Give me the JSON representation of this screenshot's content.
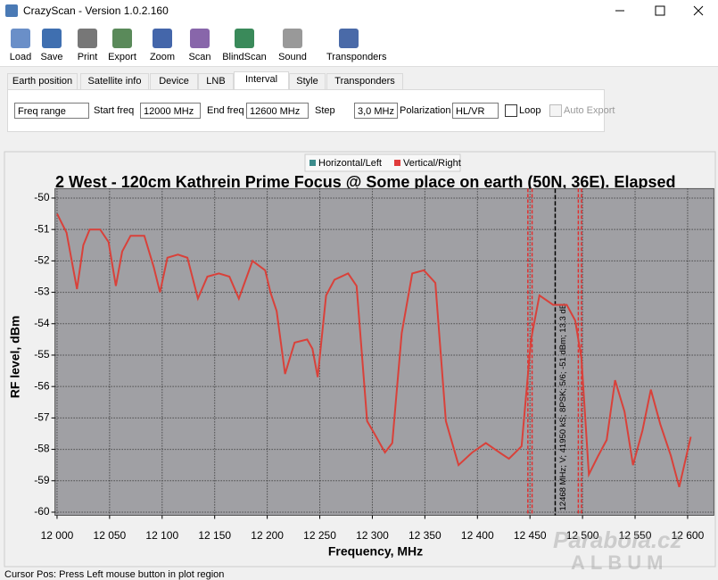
{
  "window": {
    "title": "CrazyScan - Version 1.0.2.160"
  },
  "toolbar": [
    "Load",
    "Save",
    "Print",
    "Export",
    "Zoom",
    "Scan",
    "BlindScan",
    "Sound",
    "Transponders"
  ],
  "tabs": [
    "Earth position",
    "Satellite info",
    "Device",
    "LNB",
    "Interval",
    "Style",
    "Transponders"
  ],
  "controls": {
    "mode": "Freq range",
    "start_label": "Start freq",
    "start_value": "12000 MHz",
    "end_label": "End freq",
    "end_value": "12600 MHz",
    "step_label": "Step",
    "step_value": "3,0 MHz",
    "polarization_label": "Polarization",
    "polarization_value": "HL/VR",
    "loop_label": "Loop",
    "auto_export_label": "Auto Export"
  },
  "chart_data": {
    "type": "line",
    "title": "2 West - 120cm Kathrein Prime Focus @ Some place on earth (50N, 36E). Elapsed",
    "x_label": "Frequency, MHz",
    "y_label": "RF level, dBm",
    "legend_entries": [
      {
        "name": "Horizontal/Left",
        "color": "#3c8c8c"
      },
      {
        "name": "Vertical/Right",
        "color": "#e03c3c"
      }
    ],
    "x": [
      12000,
      12009,
      12019,
      12025,
      12031,
      12041,
      12049,
      12056,
      12062,
      12070,
      12083,
      12092,
      12098,
      12105,
      12115,
      12124,
      12134,
      12143,
      12154,
      12164,
      12173,
      12186,
      12198,
      12203,
      12209,
      12217,
      12226,
      12238,
      12243,
      12248,
      12256,
      12264,
      12277,
      12285,
      12295,
      12302,
      12312,
      12319,
      12328,
      12338,
      12349,
      12360,
      12370,
      12382,
      12395,
      12408,
      12421,
      12430,
      12442,
      12451,
      12459,
      12472,
      12485,
      12493,
      12499,
      12506,
      12515,
      12523,
      12531,
      12540,
      12548,
      12557,
      12565,
      12574,
      12584,
      12592,
      12603
    ],
    "series": [
      {
        "name": "Vertical/Right",
        "color": "#d9413a",
        "values": [
          -50.5,
          -51.1,
          -52.9,
          -51.5,
          -51.0,
          -51.0,
          -51.4,
          -52.8,
          -51.7,
          -51.2,
          -51.2,
          -52.2,
          -53.0,
          -51.9,
          -51.8,
          -51.9,
          -53.2,
          -52.5,
          -52.4,
          -52.5,
          -53.2,
          -52.0,
          -52.3,
          -53.0,
          -53.6,
          -55.6,
          -54.6,
          -54.5,
          -54.8,
          -55.7,
          -53.1,
          -52.6,
          -52.4,
          -52.8,
          -57.1,
          -57.5,
          -58.1,
          -57.8,
          -54.3,
          -52.4,
          -52.3,
          -52.7,
          -57.1,
          -58.5,
          -58.1,
          -57.8,
          -58.1,
          -58.3,
          -57.9,
          -54.5,
          -53.1,
          -53.4,
          -53.4,
          -53.9,
          -55.1,
          -58.8,
          -58.2,
          -57.7,
          -55.8,
          -56.8,
          -58.5,
          -57.4,
          -56.1,
          -57.2,
          -58.2,
          -59.2,
          -57.6
        ]
      }
    ],
    "transponder_edges": [
      12448,
      12452,
      12496,
      12499
    ],
    "cursor_x": 12474,
    "cursor_label": "12468 MHz; V; 41950 kS; 8PSK; 5/6; -51 dBm; 13.3 dB",
    "xlim": [
      11998,
      12625
    ],
    "ylim": [
      -60.1,
      -49.7
    ],
    "xticks": [
      {
        "value": 12000,
        "label": "12 000"
      },
      {
        "value": 12050,
        "label": "12 050"
      },
      {
        "value": 12100,
        "label": "12 100"
      },
      {
        "value": 12150,
        "label": "12 150"
      },
      {
        "value": 12200,
        "label": "12 200"
      },
      {
        "value": 12250,
        "label": "12 250"
      },
      {
        "value": 12300,
        "label": "12 300"
      },
      {
        "value": 12350,
        "label": "12 350"
      },
      {
        "value": 12400,
        "label": "12 400"
      },
      {
        "value": 12450,
        "label": "12 450"
      },
      {
        "value": 12500,
        "label": "12 500"
      },
      {
        "value": 12550,
        "label": "12 550"
      },
      {
        "value": 12600,
        "label": "12 600"
      }
    ],
    "yticks": [
      -50,
      -51,
      -52,
      -53,
      -54,
      -55,
      -56,
      -57,
      -58,
      -59,
      -60
    ],
    "grid": true
  },
  "watermark": [
    "Parabola.cz",
    "ALBUM"
  ],
  "status": "Cursor Pos: Press Left mouse button in plot region"
}
